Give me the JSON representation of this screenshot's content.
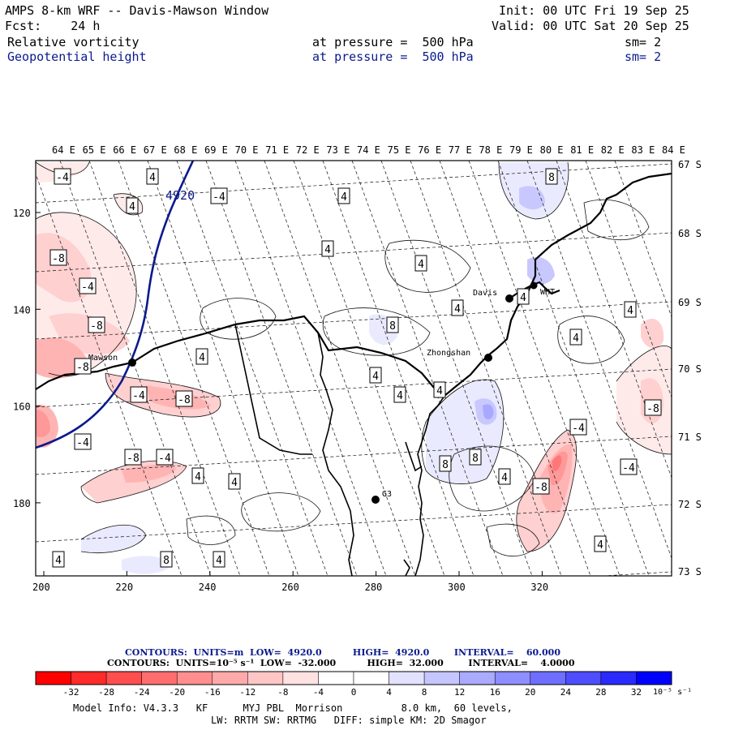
{
  "header": {
    "title": "AMPS 8-km WRF -- Davis-Mawson Window",
    "init": "Init: 00 UTC Fri 19 Sep 25",
    "fcst": "Fcst:    24 h",
    "valid": "Valid: 00 UTC Sat 20 Sep 25",
    "fields": [
      {
        "name": "Relative vorticity",
        "pressure": "at pressure =  500 hPa",
        "sm": "sm= 2"
      },
      {
        "name": "Geopotential height",
        "pressure": "at pressure =  500 hPa",
        "sm": "sm= 2"
      }
    ]
  },
  "map": {
    "lon_labels": [
      "64 E",
      "65 E",
      "66 E",
      "67 E",
      "68 E",
      "69 E",
      "70 E",
      "71 E",
      "72 E",
      "73 E",
      "74 E",
      "75 E",
      "76 E",
      "77 E",
      "78 E",
      "79 E",
      "80 E",
      "81 E",
      "82 E",
      "83 E",
      "84 E"
    ],
    "lat_labels": [
      "67 S",
      "68 S",
      "69 S",
      "70 S",
      "71 S",
      "72 S",
      "73 S"
    ],
    "x_ticks": [
      "200",
      "220",
      "240",
      "260",
      "280",
      "300",
      "320"
    ],
    "y_ticks": [
      "120",
      "140",
      "160",
      "180"
    ],
    "stations": [
      "Davis",
      "WHT",
      "Zhongshan",
      "Mawson",
      "G3"
    ],
    "height_contour_label": "4920",
    "contour_labels": [
      {
        "t": "-4"
      },
      {
        "t": "4"
      },
      {
        "t": "-4"
      },
      {
        "t": "4"
      },
      {
        "t": "4"
      },
      {
        "t": "8"
      },
      {
        "t": "-8"
      },
      {
        "t": "-4"
      },
      {
        "t": "4"
      },
      {
        "t": "4"
      },
      {
        "t": "-8"
      },
      {
        "t": "4"
      },
      {
        "t": "8"
      },
      {
        "t": "4"
      },
      {
        "t": "-8"
      },
      {
        "t": "4"
      },
      {
        "t": "4"
      },
      {
        "t": "4"
      },
      {
        "t": "-4"
      },
      {
        "t": "-8"
      },
      {
        "t": "4"
      },
      {
        "t": "-4"
      },
      {
        "t": "4"
      },
      {
        "t": "4"
      },
      {
        "t": "-8"
      },
      {
        "t": "-4"
      },
      {
        "t": "4"
      },
      {
        "t": "4"
      },
      {
        "t": "8"
      },
      {
        "t": "8"
      },
      {
        "t": "4"
      },
      {
        "t": "-4"
      },
      {
        "t": "-8"
      },
      {
        "t": "-4"
      },
      {
        "t": "-8"
      },
      {
        "t": "4"
      },
      {
        "t": "4"
      },
      {
        "t": "8"
      },
      {
        "t": "4"
      }
    ]
  },
  "colorbar": {
    "line1": "CONTOURS:  UNITS=m  LOW=  4920.0          HIGH=  4920.0        INTERVAL=    60.000",
    "line2": "CONTOURS:  UNITS=10⁻⁵ s⁻¹  LOW=  -32.000          HIGH=  32.000        INTERVAL=    4.0000",
    "labels": [
      "-32",
      "-28",
      "-24",
      "-20",
      "-16",
      "-12",
      "-8",
      "-4",
      "0",
      "4",
      "8",
      "12",
      "16",
      "20",
      "24",
      "28",
      "32"
    ],
    "unit": "10⁻⁵ s⁻¹",
    "colors": [
      "#ff0000",
      "#ff3a3a",
      "#ff5a5a",
      "#ff7878",
      "#ff9898",
      "#ffb4b4",
      "#ffd0d0",
      "#ffeaea",
      "#ffffff",
      "#ffffff",
      "#eaeaff",
      "#c8c8ff",
      "#a8a8ff",
      "#8686ff",
      "#6464ff",
      "#3e3eff",
      "#1616ff"
    ]
  },
  "footer": {
    "line1": "Model Info: V4.3.3   KF      MYJ PBL  Morrison          8.0 km,  60 levels,",
    "line2": "LW: RRTM SW: RRTMG   DIFF: simple KM: 2D Smagor"
  }
}
